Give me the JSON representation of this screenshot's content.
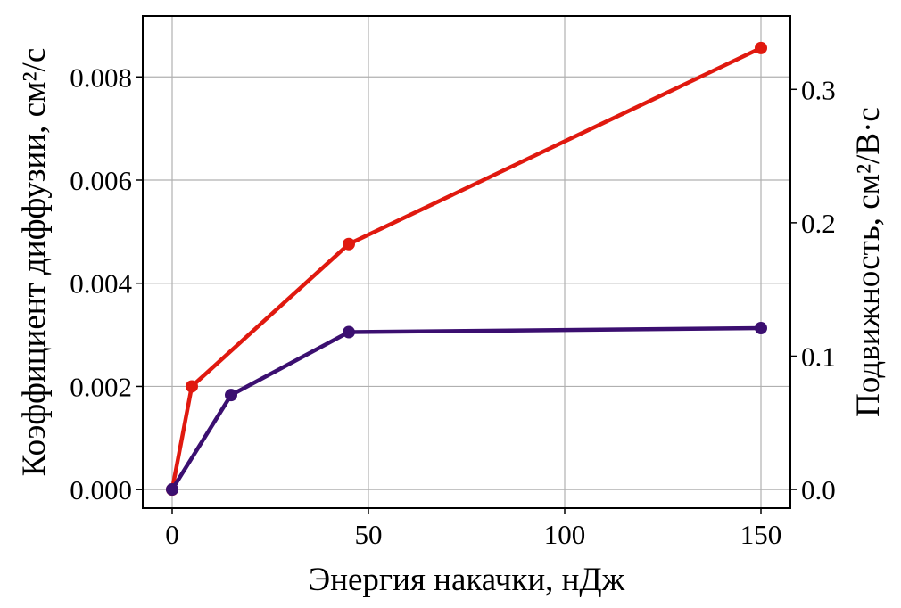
{
  "chart_data": {
    "type": "line",
    "title": "",
    "xlabel": "Энергия накачки, нДж",
    "ylabel_left": "Коэффициент диффузии, см²/с",
    "ylabel_right": "Подвижность, см²/В·с",
    "xlim": [
      -7.5,
      157.5
    ],
    "ylim_left": [
      -0.00036,
      0.00918
    ],
    "ylim_right": [
      -0.014,
      0.355
    ],
    "x_ticks": [
      0,
      50,
      100,
      150
    ],
    "x_tick_labels": [
      "0",
      "50",
      "100",
      "150"
    ],
    "y_left_ticks": [
      0,
      0.002,
      0.004,
      0.006,
      0.008
    ],
    "y_left_tick_labels": [
      "0.000",
      "0.002",
      "0.004",
      "0.006",
      "0.008"
    ],
    "y_right_ticks": [
      0,
      0.1,
      0.2,
      0.3
    ],
    "y_right_tick_labels": [
      "0.0",
      "0.1",
      "0.2",
      "0.3"
    ],
    "grid": true,
    "series": [
      {
        "name": "diffusion",
        "axis": "left",
        "color": "#e0190f",
        "x": [
          0,
          5,
          45,
          150
        ],
        "y": [
          0,
          0.002,
          0.00476,
          0.00856
        ]
      },
      {
        "name": "mobility",
        "axis": "right",
        "color": "#3b0f70",
        "x": [
          0,
          15,
          45,
          150
        ],
        "y": [
          0,
          0.0708,
          0.118,
          0.121
        ]
      }
    ]
  }
}
